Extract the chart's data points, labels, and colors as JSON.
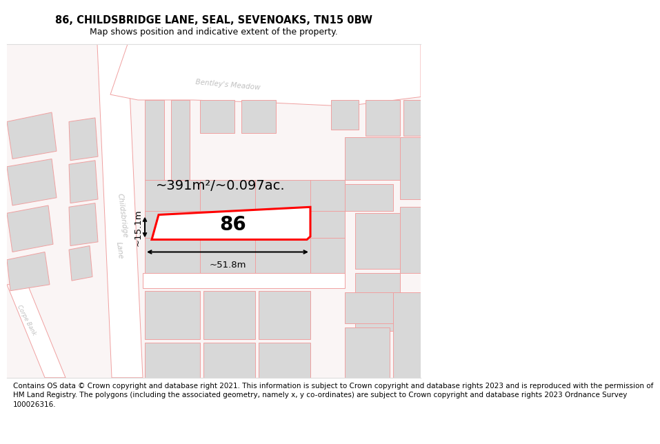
{
  "title": "86, CHILDSBRIDGE LANE, SEAL, SEVENOAKS, TN15 0BW",
  "subtitle": "Map shows position and indicative extent of the property.",
  "footer_line1": "Contains OS data © Crown copyright and database right 2021. This information is subject to Crown copyright and database rights 2023 and is reproduced with the permission of",
  "footer_line2": "HM Land Registry. The polygons (including the associated geometry, namely x, y co-ordinates) are subject to Crown copyright and database rights 2023 Ordnance Survey",
  "footer_line3": "100026316.",
  "area_text": "~391m²/~0.097ac.",
  "width_text": "~51.8m",
  "height_text": "~15.1m",
  "plot_number": "86",
  "bg_color": "#faf5f5",
  "road_color": "#ffffff",
  "plot_fill": "none",
  "plot_edge": "#ff0000",
  "bld_fill": "#d8d8d8",
  "bld_edge": "#f0a0a0",
  "road_line": "#f0a0a0",
  "dim_color": "#000000",
  "label_color": "#c0c0c0",
  "title_fontsize": 10.5,
  "subtitle_fontsize": 9.0,
  "footer_fontsize": 7.5,
  "area_fontsize": 14,
  "dim_fontsize": 9.5,
  "plot_label_fontsize": 20,
  "street_fontsize": 7.5
}
